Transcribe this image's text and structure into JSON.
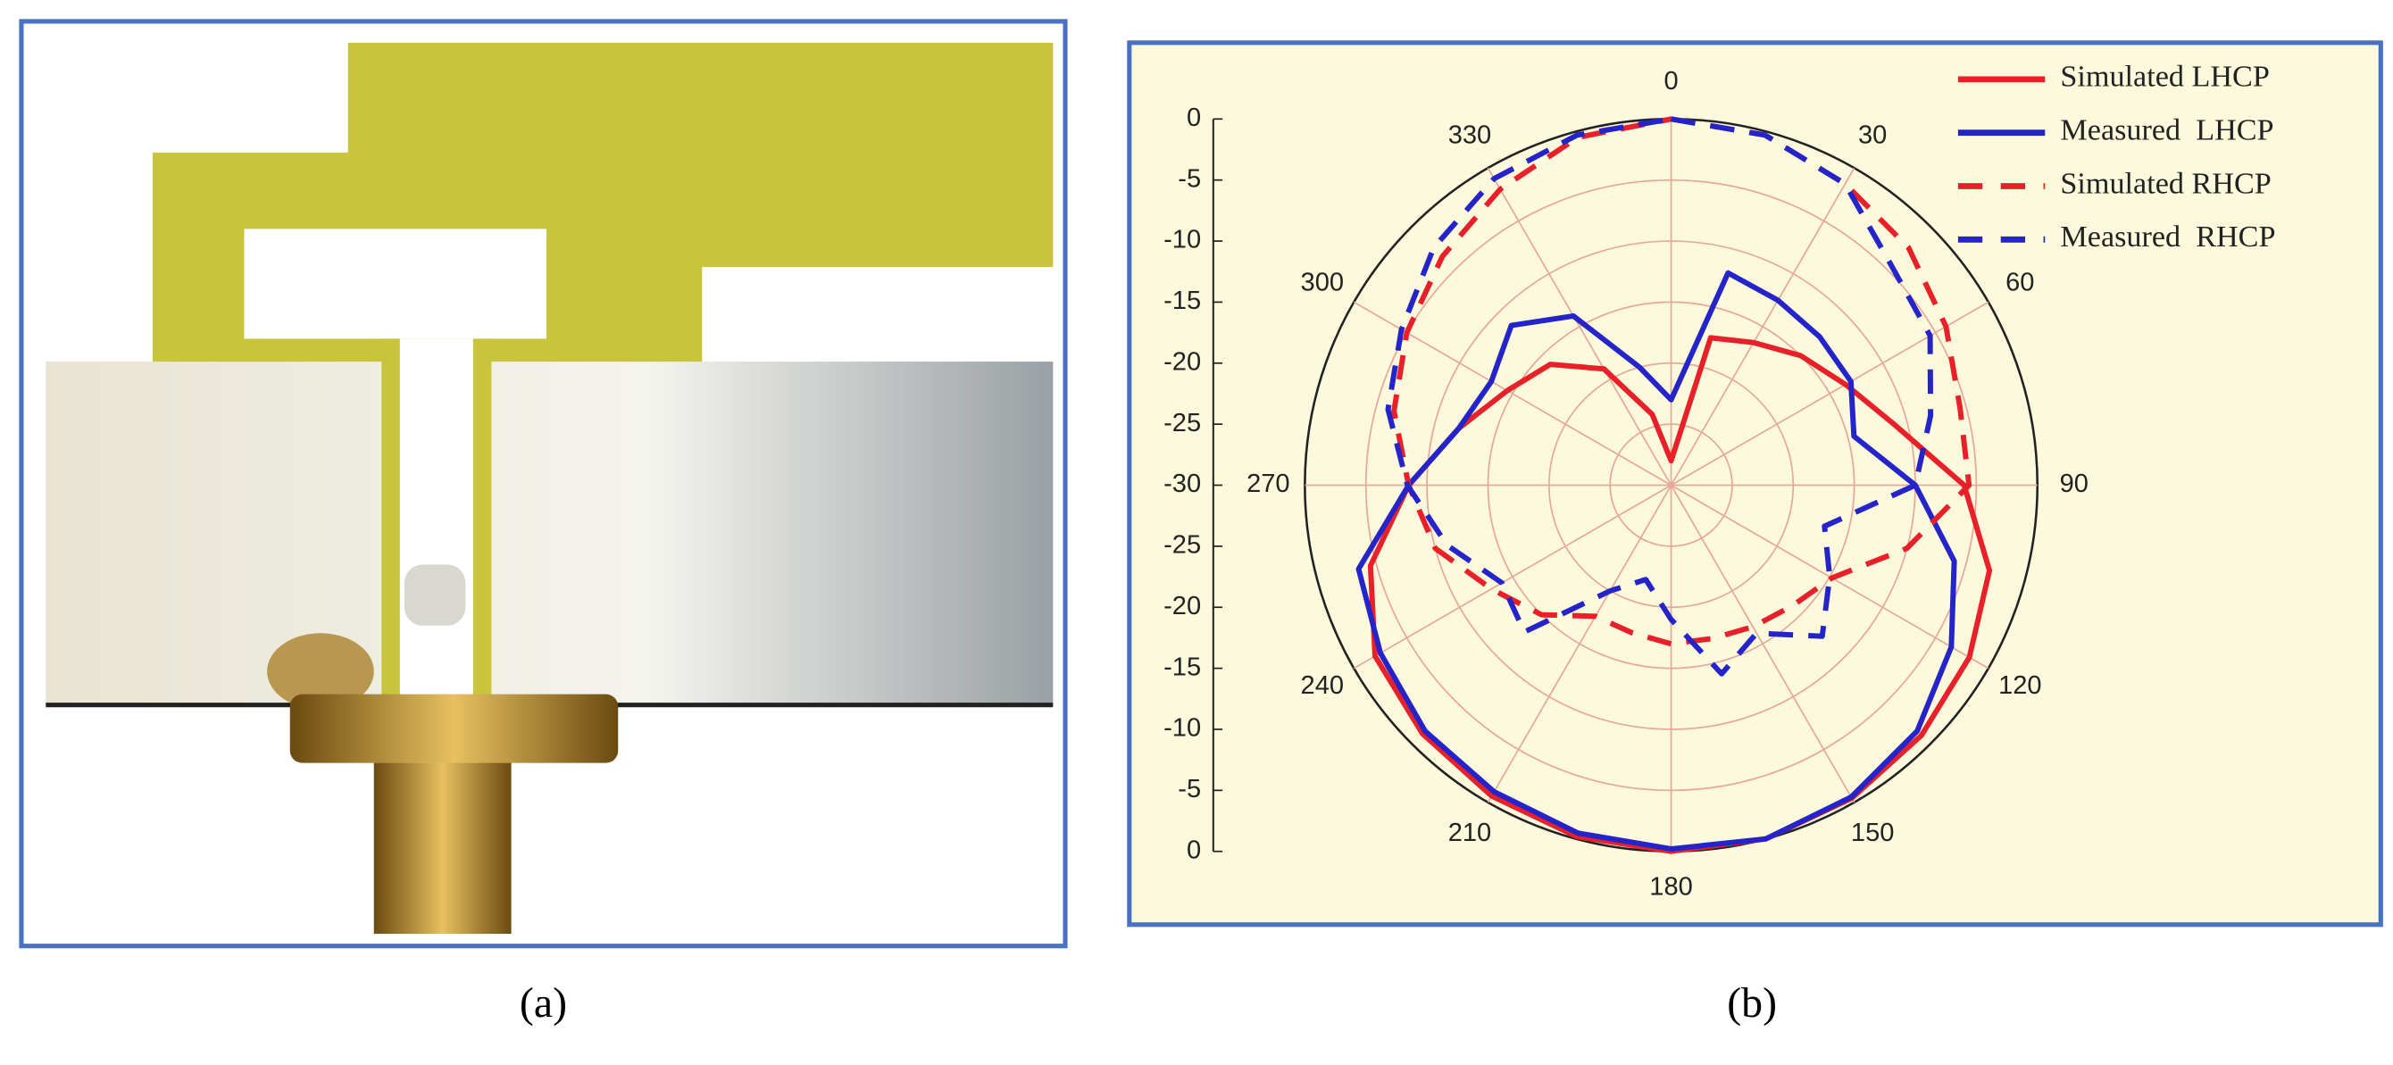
{
  "chart_data": {
    "type": "polar",
    "theta": [
      0,
      15,
      30,
      45,
      60,
      75,
      90,
      105,
      120,
      135,
      150,
      165,
      180,
      195,
      210,
      225,
      240,
      255,
      270,
      285,
      300,
      315,
      330,
      345
    ],
    "thetaticks": [
      0,
      30,
      60,
      90,
      120,
      150,
      180,
      210,
      240,
      270,
      300,
      330
    ],
    "rlim": [
      -30,
      0
    ],
    "rticks": [
      -30,
      -25,
      -20,
      -15,
      -10,
      -5,
      0
    ],
    "grid": true,
    "legend": "upper right",
    "series": [
      {
        "name": "Simulated LHCP",
        "color": "#e8202a",
        "dash": false,
        "values": [
          -28,
          -17.5,
          -16.5,
          -15,
          -13.5,
          -11,
          -6,
          -3,
          -1.8,
          -1,
          -0.4,
          0,
          0,
          -0.2,
          -0.6,
          -1.2,
          -2,
          -4.5,
          -8.5,
          -12,
          -14.5,
          -16,
          -19,
          -24
        ]
      },
      {
        "name": "Measured  LHCP",
        "color": "#2424c8",
        "dash": false,
        "values": [
          -23,
          -12,
          -12.5,
          -12.8,
          -13,
          -14.5,
          -10,
          -6,
          -3.5,
          -1.5,
          -0.5,
          0,
          -0.2,
          -0.5,
          -1,
          -1.5,
          -2.5,
          -3.5,
          -8.5,
          -12,
          -13,
          -11.5,
          -14,
          -20
        ]
      },
      {
        "name": "Simulated RHCP",
        "color": "#e8202a",
        "dash": true,
        "values": [
          0,
          -0.3,
          -1.5,
          -2.5,
          -4,
          -5.5,
          -5.6,
          -10,
          -14.8,
          -16,
          -16.6,
          -17,
          -17,
          -17.5,
          -17.6,
          -15,
          -13,
          -10,
          -8.5,
          -6.5,
          -5,
          -3.5,
          -2,
          -0.5
        ]
      },
      {
        "name": "Measured  RHCP",
        "color": "#2424c8",
        "dash": true,
        "values": [
          0,
          -0.3,
          -1.5,
          -4.5,
          -5.5,
          -8,
          -10,
          -17,
          -15,
          -12.5,
          -16,
          -14,
          -19,
          -22,
          -20,
          -13,
          -14,
          -11,
          -8.4,
          -6,
          -4.5,
          -2.5,
          -1,
          -0.3
        ]
      }
    ]
  },
  "captions": [
    "(a)",
    "(b)"
  ]
}
